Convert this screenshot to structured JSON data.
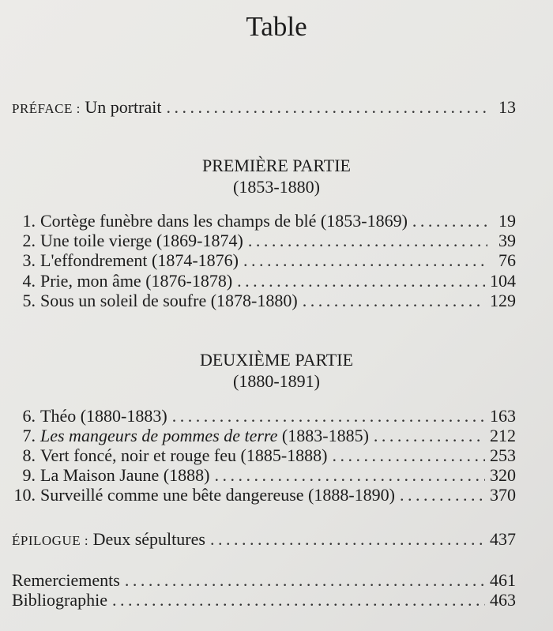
{
  "title": "Table",
  "preface": {
    "label_prefix": "PRÉFACE :",
    "label": "Un portrait",
    "page": "13"
  },
  "parts": [
    {
      "title": "PREMIÈRE PARTIE",
      "dates": "(1853-1880)",
      "chapters": [
        {
          "num": "1.",
          "title": "Cortège funèbre dans les champs de blé (1853-1869)",
          "page": "19"
        },
        {
          "num": "2.",
          "title": "Une toile vierge (1869-1874)",
          "page": "39"
        },
        {
          "num": "3.",
          "title": "L'effondrement (1874-1876)",
          "page": "76"
        },
        {
          "num": "4.",
          "title": "Prie, mon âme (1876-1878)",
          "page": "104"
        },
        {
          "num": "5.",
          "title": "Sous un soleil de soufre (1878-1880)",
          "page": "129"
        }
      ]
    },
    {
      "title": "DEUXIÈME PARTIE",
      "dates": "(1880-1891)",
      "chapters": [
        {
          "num": "6.",
          "title": "Théo (1880-1883)",
          "page": "163"
        },
        {
          "num": "7.",
          "title_italic": "Les mangeurs de pommes de terre",
          "title": " (1883-1885)",
          "page": "212"
        },
        {
          "num": "8.",
          "title": "Vert foncé, noir et rouge feu (1885-1888)",
          "page": "253"
        },
        {
          "num": "9.",
          "title": "La Maison Jaune (1888)",
          "page": "320"
        },
        {
          "num": "10.",
          "title": "Surveillé comme une bête dangereuse (1888-1890)",
          "page": "370"
        }
      ]
    }
  ],
  "epilogue": {
    "label_prefix": "ÉPILOGUE :",
    "label": "Deux sépultures",
    "page": "437"
  },
  "back_matter": [
    {
      "title": "Remerciements",
      "page": "461"
    },
    {
      "title": "Bibliographie",
      "page": "463"
    }
  ]
}
